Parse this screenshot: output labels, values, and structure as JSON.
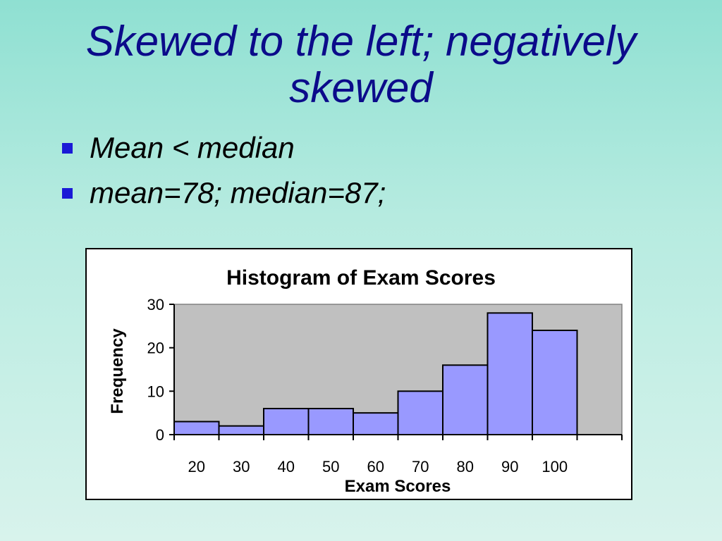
{
  "slide": {
    "title": "Skewed to the left; negatively skewed",
    "bullets": [
      "Mean < median",
      "mean=78; median=87;"
    ]
  },
  "colors": {
    "title": "#0b0b8a",
    "bullet": "#1a1ad6",
    "bar_fill": "#9999ff",
    "plot_area": "#c0c0c0"
  },
  "chart_data": {
    "type": "bar",
    "title": "Histogram of Exam Scores",
    "xlabel": "Exam Scores",
    "ylabel": "Frequency",
    "categories": [
      "20",
      "30",
      "40",
      "50",
      "60",
      "70",
      "80",
      "90",
      "100"
    ],
    "values": [
      3,
      2,
      6,
      6,
      5,
      10,
      16,
      28,
      24
    ],
    "ylim": [
      0,
      30
    ],
    "yticks": [
      0,
      10,
      20,
      30
    ],
    "grid": false,
    "legend": "none"
  }
}
